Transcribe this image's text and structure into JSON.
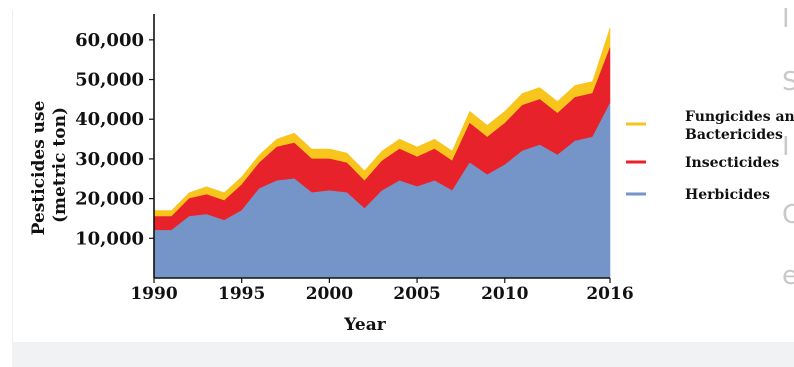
{
  "chart_data": {
    "type": "area",
    "stacked": true,
    "xlabel": "Year",
    "ylabel_lines": [
      "Pesticides use",
      "(metric ton)"
    ],
    "x_tick_labels": [
      "1990",
      "1995",
      "2000",
      "2005",
      "2010",
      "2016"
    ],
    "y_tick_labels": [
      "10,000",
      "20,000",
      "30,000",
      "40,000",
      "50,000",
      "60,000"
    ],
    "xlim": [
      1990,
      2016
    ],
    "ylim": [
      0,
      65000
    ],
    "x": [
      1990,
      1991,
      1992,
      1993,
      1994,
      1995,
      1996,
      1997,
      1998,
      1999,
      2000,
      2001,
      2002,
      2003,
      2004,
      2005,
      2006,
      2007,
      2008,
      2009,
      2010,
      2011,
      2012,
      2013,
      2014,
      2015,
      2016
    ],
    "series": [
      {
        "name": "Herbicides",
        "color": "#7595c9",
        "values": [
          12000,
          12000,
          15500,
          16000,
          14500,
          17000,
          22500,
          24500,
          25000,
          21500,
          22000,
          21500,
          17500,
          22000,
          24500,
          23000,
          24500,
          22000,
          29000,
          26000,
          28500,
          32000,
          33500,
          31000,
          34500,
          35500,
          44000
        ]
      },
      {
        "name": "Insecticides",
        "color": "#e8222a",
        "values": [
          3500,
          3500,
          4500,
          5000,
          5000,
          6500,
          6500,
          8500,
          9000,
          8500,
          8000,
          7500,
          7000,
          7500,
          8000,
          7500,
          8000,
          7500,
          10000,
          9500,
          10500,
          11500,
          11500,
          10500,
          11000,
          11000,
          14000
        ]
      },
      {
        "name": "Fungicides and Bactericides",
        "label_lines": [
          "Fungicides and",
          "Bactericides"
        ],
        "color": "#f7c51c",
        "values": [
          1500,
          1500,
          1500,
          2000,
          2000,
          2000,
          2000,
          2000,
          2500,
          2500,
          2500,
          2500,
          2500,
          2500,
          2500,
          2500,
          2500,
          2500,
          3000,
          3000,
          3000,
          3000,
          3000,
          3000,
          3000,
          3000,
          5000
        ]
      }
    ],
    "grid": false,
    "legend_position": "right"
  },
  "side_glyphs": [
    "I",
    "S",
    "I",
    "C",
    "e"
  ]
}
